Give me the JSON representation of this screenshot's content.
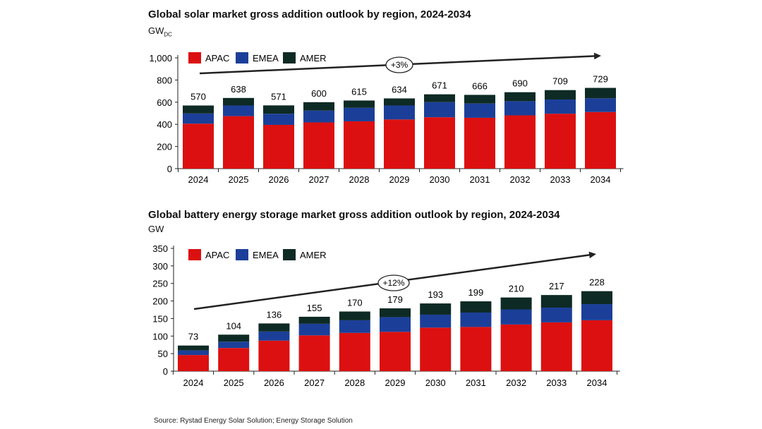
{
  "chart_data": [
    {
      "type": "bar",
      "stacked": true,
      "title": "Global solar market gross addition outlook by region, 2024-2034",
      "unit_main": "GW",
      "unit_sub": "DC",
      "categories": [
        "2024",
        "2025",
        "2026",
        "2027",
        "2028",
        "2029",
        "2030",
        "2031",
        "2032",
        "2033",
        "2034"
      ],
      "series": [
        {
          "name": "APAC",
          "color": "#dc1010",
          "values": [
            406,
            474,
            395,
            417,
            427,
            444,
            464,
            459,
            481,
            496,
            511
          ]
        },
        {
          "name": "EMEA",
          "color": "#1b3f99",
          "values": [
            92,
            96,
            101,
            107,
            122,
            126,
            136,
            129,
            128,
            128,
            124
          ]
        },
        {
          "name": "AMER",
          "color": "#0e2a25",
          "values": [
            72,
            68,
            75,
            76,
            66,
            64,
            71,
            78,
            81,
            85,
            94
          ]
        }
      ],
      "totals": [
        "570",
        "638",
        "571",
        "600",
        "615",
        "634",
        "671",
        "666",
        "690",
        "709",
        "729"
      ],
      "yticks": [
        "0",
        "200",
        "400",
        "600",
        "800",
        "1,000"
      ],
      "ylim": [
        0,
        1000
      ],
      "annotation": "+3%",
      "legend": "top-left",
      "grid": false
    },
    {
      "type": "bar",
      "stacked": true,
      "title": "Global battery energy storage market gross addition outlook by region, 2024-2034",
      "unit_main": "GW",
      "unit_sub": "",
      "categories": [
        "2024",
        "2025",
        "2026",
        "2027",
        "2028",
        "2029",
        "2030",
        "2031",
        "2032",
        "2033",
        "2034"
      ],
      "series": [
        {
          "name": "APAC",
          "color": "#dc1010",
          "values": [
            46,
            66,
            87,
            102,
            109,
            112,
            124,
            126,
            133,
            139,
            145
          ]
        },
        {
          "name": "EMEA",
          "color": "#1b3f99",
          "values": [
            13,
            18,
            26,
            33,
            36,
            42,
            37,
            41,
            43,
            42,
            46
          ]
        },
        {
          "name": "AMER",
          "color": "#0e2a25",
          "values": [
            14,
            20,
            23,
            20,
            25,
            25,
            32,
            32,
            34,
            36,
            37
          ]
        }
      ],
      "totals": [
        "73",
        "104",
        "136",
        "155",
        "170",
        "179",
        "193",
        "199",
        "210",
        "217",
        "228"
      ],
      "yticks": [
        "0",
        "50",
        "100",
        "150",
        "200",
        "250",
        "300",
        "350"
      ],
      "ylim": [
        0,
        350
      ],
      "annotation": "+12%",
      "legend": "top-left",
      "grid": false
    }
  ],
  "source": "Source: Rystad Energy Solar Solution; Energy Storage Solution"
}
